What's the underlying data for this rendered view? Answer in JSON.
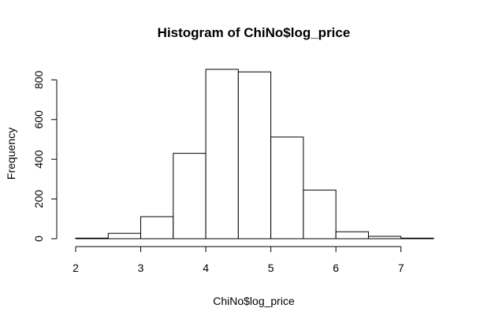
{
  "chart_data": {
    "type": "bar",
    "title": "Histogram of ChiNo$log_price",
    "xlabel": "ChiNo$log_price",
    "ylabel": "Frequency",
    "bins": [
      {
        "x0": 2.0,
        "x1": 2.5,
        "count": 3
      },
      {
        "x0": 2.5,
        "x1": 3.0,
        "count": 27
      },
      {
        "x0": 3.0,
        "x1": 3.5,
        "count": 111
      },
      {
        "x0": 3.5,
        "x1": 4.0,
        "count": 430
      },
      {
        "x0": 4.0,
        "x1": 4.5,
        "count": 853
      },
      {
        "x0": 4.5,
        "x1": 5.0,
        "count": 840
      },
      {
        "x0": 5.0,
        "x1": 5.5,
        "count": 512
      },
      {
        "x0": 5.5,
        "x1": 6.0,
        "count": 245
      },
      {
        "x0": 6.0,
        "x1": 6.5,
        "count": 35
      },
      {
        "x0": 6.5,
        "x1": 7.0,
        "count": 12
      },
      {
        "x0": 7.0,
        "x1": 7.5,
        "count": 3
      }
    ],
    "xlim": [
      2,
      7.5
    ],
    "ylim": [
      0,
      853
    ],
    "xticks": [
      2,
      3,
      4,
      5,
      6,
      7
    ],
    "yticks": [
      0,
      200,
      400,
      600,
      800
    ],
    "grid": false,
    "legend": "none"
  }
}
